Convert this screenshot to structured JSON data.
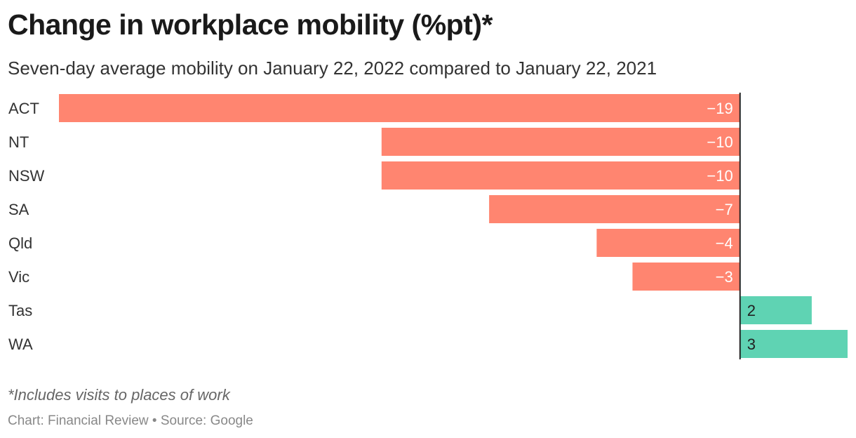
{
  "header": {
    "title": "Change in workplace mobility (%pt)*",
    "subtitle": "Seven-day average mobility on January 22, 2022 compared to January 22, 2021"
  },
  "footer": {
    "note": "*Includes visits to places of work",
    "credit": "Chart: Financial Review • Source: Google"
  },
  "chart_data": {
    "type": "bar",
    "orientation": "horizontal",
    "categories": [
      "ACT",
      "NT",
      "NSW",
      "SA",
      "Qld",
      "Vic",
      "Tas",
      "WA"
    ],
    "values": [
      -19,
      -10,
      -10,
      -7,
      -4,
      -3,
      2,
      3
    ],
    "value_labels": [
      "−19",
      "−10",
      "−10",
      "−7",
      "−4",
      "−3",
      "2",
      "3"
    ],
    "xlim": [
      -19,
      3
    ],
    "grid": false,
    "legend": "none",
    "colors": {
      "negative": "#ff8570",
      "positive": "#5fd3b3",
      "axis": "#222222",
      "negative_label": "#ffffff",
      "positive_label": "#222222"
    }
  }
}
